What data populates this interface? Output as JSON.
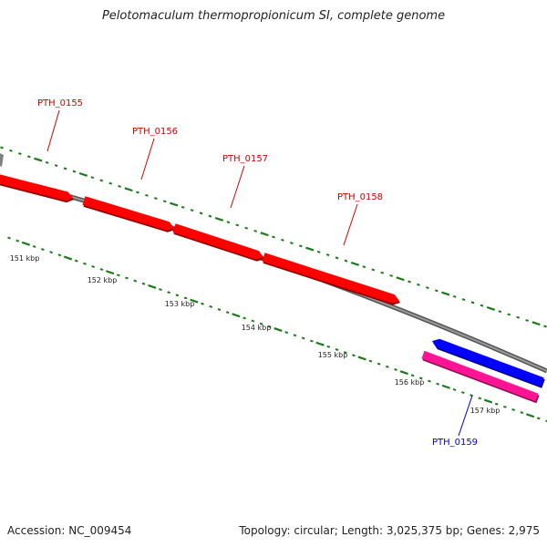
{
  "title": "Pelotomaculum thermopropionicum SI, complete genome",
  "footer": {
    "accession": "Accession: NC_009454",
    "summary": "Topology: circular; Length: 3,025,375 bp; Genes: 2,975"
  },
  "colors": {
    "forward_gene": "#ff0000",
    "reverse_gene": "#0000ff",
    "rna_gene": "#ff1493",
    "backbone": "#777777",
    "tick": "#1a7a1a",
    "forward_label": "#cc0000",
    "reverse_label": "#0000cc"
  },
  "genes": [
    {
      "id": "PTH_0155",
      "label": "PTH_0155",
      "strand": "forward"
    },
    {
      "id": "PTH_0156",
      "label": "PTH_0156",
      "strand": "forward"
    },
    {
      "id": "PTH_0157",
      "label": "PTH_0157",
      "strand": "forward"
    },
    {
      "id": "PTH_0158",
      "label": "PTH_0158",
      "strand": "forward"
    },
    {
      "id": "PTH_0159",
      "label": "PTH_0159",
      "strand": "reverse"
    }
  ],
  "scale_ticks": [
    "151 kbp",
    "152 kbp",
    "153 kbp",
    "154 kbp",
    "155 kbp",
    "156 kbp",
    "157 kbp"
  ]
}
